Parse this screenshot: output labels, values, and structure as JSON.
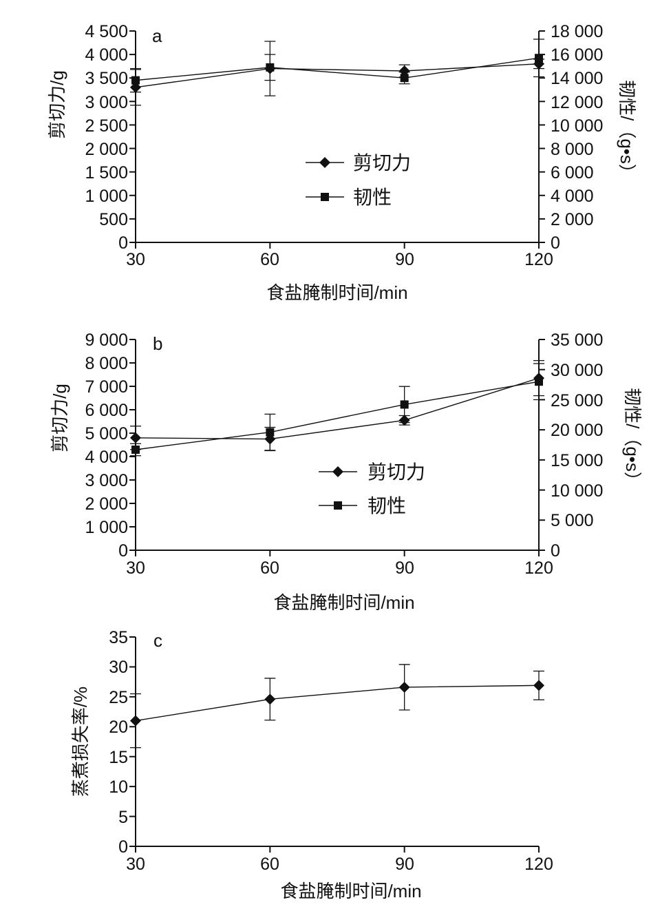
{
  "chart_data": [
    {
      "type": "line",
      "panel_label": "a",
      "x": [
        30,
        60,
        90,
        120
      ],
      "xlabel": "食盐腌制时间/min",
      "xticks": [
        "30",
        "60",
        "90",
        "120"
      ],
      "ylabel": "剪切力/g",
      "ylim": [
        0,
        4500
      ],
      "yticks": [
        "0",
        "500",
        "1 000",
        "1 500",
        "2 000",
        "2 500",
        "3 000",
        "3 500",
        "4 000",
        "4 500"
      ],
      "y2label": "韧性/（g•s）",
      "y2lim": [
        0,
        18000
      ],
      "y2ticks": [
        "0",
        "2 000",
        "4 000",
        "6 000",
        "8 000",
        "10 000",
        "12 000",
        "14 000",
        "16 000",
        "18 000"
      ],
      "legend_position": "center",
      "series": [
        {
          "name": "剪切力",
          "marker": "diamond",
          "axis": "left",
          "values": [
            3300,
            3700,
            3650,
            3800
          ],
          "errors": [
            380,
            580,
            130,
            100
          ]
        },
        {
          "name": "韧性",
          "marker": "square",
          "axis": "right",
          "values": [
            13800,
            14900,
            14000,
            15700
          ],
          "errors": [
            1000,
            1100,
            500,
            1600
          ]
        }
      ]
    },
    {
      "type": "line",
      "panel_label": "b",
      "x": [
        30,
        60,
        90,
        120
      ],
      "xlabel": "食盐腌制时间/min",
      "xticks": [
        "30",
        "60",
        "90",
        "120"
      ],
      "ylabel": "剪切力/g",
      "ylim": [
        0,
        9000
      ],
      "yticks": [
        "0",
        "1 000",
        "2 000",
        "3 000",
        "4 000",
        "5 000",
        "6 000",
        "7 000",
        "8 000",
        "9 000"
      ],
      "y2label": "韧性/（g•s）",
      "y2lim": [
        0,
        35000
      ],
      "y2ticks": [
        "0",
        "5 000",
        "10 000",
        "15 000",
        "20 000",
        "25 000",
        "30 000",
        "35 000"
      ],
      "legend_position": "center",
      "series": [
        {
          "name": "剪切力",
          "marker": "diamond",
          "axis": "left",
          "values": [
            4800,
            4750,
            5550,
            7350
          ],
          "errors": [
            500,
            500,
            200,
            750
          ]
        },
        {
          "name": "韧性",
          "marker": "square",
          "axis": "right",
          "values": [
            16700,
            19600,
            24200,
            28000
          ],
          "errors": [
            1000,
            3000,
            3000,
            3000
          ]
        }
      ]
    },
    {
      "type": "line",
      "panel_label": "c",
      "x": [
        30,
        60,
        90,
        120
      ],
      "xlabel": "食盐腌制时间/min",
      "xticks": [
        "30",
        "60",
        "90",
        "120"
      ],
      "ylabel": "蒸煮损失率/%",
      "ylim": [
        0,
        35
      ],
      "yticks": [
        "0",
        "5",
        "10",
        "15",
        "20",
        "25",
        "30",
        "35"
      ],
      "series": [
        {
          "name": "",
          "marker": "diamond",
          "axis": "left",
          "values": [
            21,
            24.6,
            26.6,
            26.9
          ],
          "errors": [
            4.5,
            3.5,
            3.8,
            2.4
          ]
        }
      ]
    }
  ]
}
